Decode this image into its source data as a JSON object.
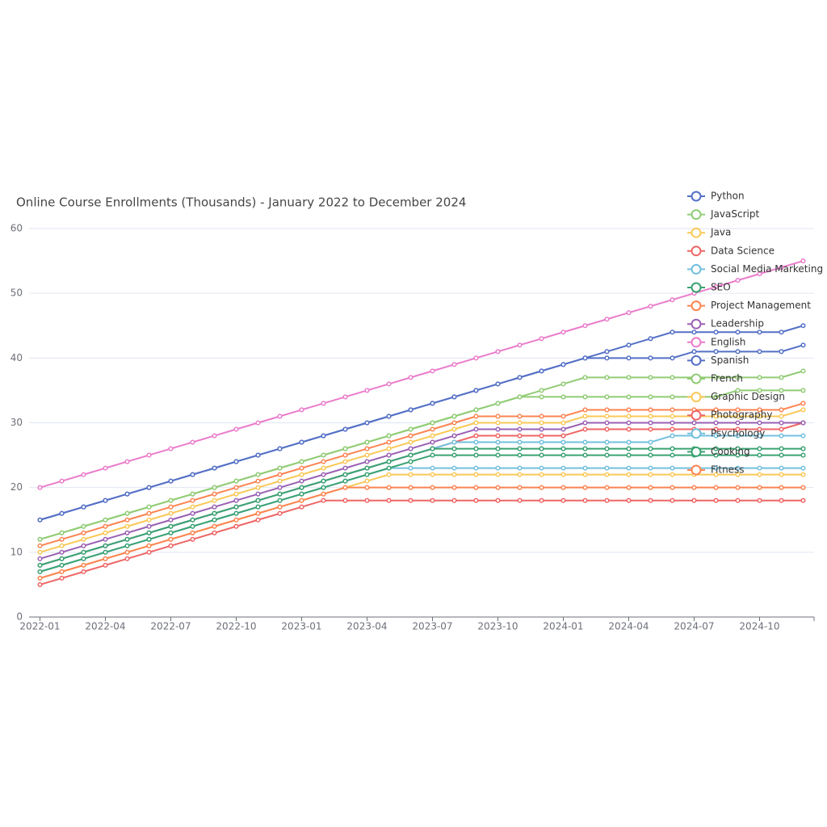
{
  "chart_data": {
    "type": "line",
    "title": "Online Course Enrollments (Thousands) - January 2022 to December 2024",
    "categories": [
      "2022-01",
      null,
      null,
      "2022-04",
      null,
      null,
      "2022-07",
      null,
      null,
      "2022-10",
      null,
      null,
      "2023-01",
      null,
      null,
      "2023-04",
      null,
      null,
      "2023-07",
      null,
      null,
      "2023-10",
      null,
      null,
      "2024-01",
      null,
      null,
      "2024-04",
      null,
      null,
      "2024-07",
      null,
      null,
      "2024-10",
      null,
      null
    ],
    "ylim": [
      0,
      60
    ],
    "yticks": [
      0,
      10,
      20,
      30,
      40,
      50,
      60
    ],
    "grid": true,
    "legend": "top-right",
    "series": [
      {
        "name": "Python",
        "color": "#5470c6",
        "values": [
          15,
          16,
          17,
          18,
          19,
          20,
          21,
          22,
          23,
          24,
          25,
          26,
          27,
          28,
          29,
          30,
          31,
          32,
          33,
          34,
          35,
          36,
          37,
          38,
          39,
          40,
          41,
          42,
          43,
          44,
          44,
          44,
          44,
          44,
          44,
          45
        ]
      },
      {
        "name": "JavaScript",
        "color": "#91cc75",
        "values": [
          12,
          13,
          14,
          15,
          16,
          17,
          18,
          19,
          20,
          21,
          22,
          23,
          24,
          25,
          26,
          27,
          28,
          29,
          30,
          31,
          32,
          33,
          34,
          35,
          36,
          37,
          37,
          37,
          37,
          37,
          37,
          37,
          37,
          37,
          37,
          38
        ]
      },
      {
        "name": "Java",
        "color": "#fac858",
        "values": [
          10,
          11,
          12,
          13,
          14,
          15,
          16,
          17,
          18,
          19,
          20,
          21,
          22,
          23,
          24,
          25,
          26,
          27,
          28,
          29,
          30,
          30,
          30,
          30,
          30,
          31,
          31,
          31,
          31,
          31,
          31,
          31,
          31,
          31,
          31,
          32
        ]
      },
      {
        "name": "Data Science",
        "color": "#ee6666",
        "values": [
          8,
          9,
          10,
          11,
          12,
          13,
          14,
          15,
          16,
          17,
          18,
          19,
          20,
          21,
          22,
          23,
          24,
          25,
          26,
          27,
          28,
          28,
          28,
          28,
          28,
          29,
          29,
          29,
          29,
          29,
          29,
          29,
          29,
          29,
          29,
          30
        ]
      },
      {
        "name": "Social Media Marketing",
        "color": "#73c0de",
        "values": [
          8,
          9,
          10,
          11,
          12,
          13,
          14,
          15,
          16,
          17,
          18,
          19,
          20,
          21,
          22,
          23,
          24,
          25,
          26,
          27,
          27,
          27,
          27,
          27,
          27,
          27,
          27,
          27,
          27,
          28,
          28,
          28,
          28,
          28,
          28,
          28
        ]
      },
      {
        "name": "SEO",
        "color": "#3ba272",
        "values": [
          8,
          9,
          10,
          11,
          12,
          13,
          14,
          15,
          16,
          17,
          18,
          19,
          20,
          21,
          22,
          23,
          24,
          25,
          26,
          26,
          26,
          26,
          26,
          26,
          26,
          26,
          26,
          26,
          26,
          26,
          26,
          26,
          26,
          26,
          26,
          26
        ]
      },
      {
        "name": "Project Management",
        "color": "#fc8452",
        "values": [
          11,
          12,
          13,
          14,
          15,
          16,
          17,
          18,
          19,
          20,
          21,
          22,
          23,
          24,
          25,
          26,
          27,
          28,
          29,
          30,
          31,
          31,
          31,
          31,
          31,
          32,
          32,
          32,
          32,
          32,
          32,
          32,
          32,
          32,
          32,
          33
        ]
      },
      {
        "name": "Leadership",
        "color": "#9a60b4",
        "values": [
          9,
          10,
          11,
          12,
          13,
          14,
          15,
          16,
          17,
          18,
          19,
          20,
          21,
          22,
          23,
          24,
          25,
          26,
          27,
          28,
          29,
          29,
          29,
          29,
          29,
          30,
          30,
          30,
          30,
          30,
          30,
          30,
          30,
          30,
          30,
          30
        ]
      },
      {
        "name": "English",
        "color": "#ea7ccc",
        "values": [
          20,
          21,
          22,
          23,
          24,
          25,
          26,
          27,
          28,
          29,
          30,
          31,
          32,
          33,
          34,
          35,
          36,
          37,
          38,
          39,
          40,
          41,
          42,
          43,
          44,
          45,
          46,
          47,
          48,
          49,
          50,
          51,
          52,
          53,
          54,
          55
        ]
      },
      {
        "name": "Spanish",
        "color": "#5470c6",
        "values": [
          15,
          16,
          17,
          18,
          19,
          20,
          21,
          22,
          23,
          24,
          25,
          26,
          27,
          28,
          29,
          30,
          31,
          32,
          33,
          34,
          35,
          36,
          37,
          38,
          39,
          40,
          40,
          40,
          40,
          40,
          41,
          41,
          41,
          41,
          41,
          42
        ]
      },
      {
        "name": "French",
        "color": "#91cc75",
        "values": [
          12,
          13,
          14,
          15,
          16,
          17,
          18,
          19,
          20,
          21,
          22,
          23,
          24,
          25,
          26,
          27,
          28,
          29,
          30,
          31,
          32,
          33,
          34,
          34,
          34,
          34,
          34,
          34,
          34,
          34,
          34,
          34,
          35,
          35,
          35,
          35
        ]
      },
      {
        "name": "Graphic Design",
        "color": "#fac858",
        "values": [
          6,
          7,
          8,
          9,
          10,
          11,
          12,
          13,
          14,
          15,
          16,
          17,
          18,
          19,
          20,
          21,
          22,
          22,
          22,
          22,
          22,
          22,
          22,
          22,
          22,
          22,
          22,
          22,
          22,
          22,
          22,
          22,
          22,
          22,
          22,
          22
        ]
      },
      {
        "name": "Photography",
        "color": "#ee6666",
        "values": [
          5,
          6,
          7,
          8,
          9,
          10,
          11,
          12,
          13,
          14,
          15,
          16,
          17,
          18,
          18,
          18,
          18,
          18,
          18,
          18,
          18,
          18,
          18,
          18,
          18,
          18,
          18,
          18,
          18,
          18,
          18,
          18,
          18,
          18,
          18,
          18
        ]
      },
      {
        "name": "Psychology",
        "color": "#73c0de",
        "values": [
          7,
          8,
          9,
          10,
          11,
          12,
          13,
          14,
          15,
          16,
          17,
          18,
          19,
          20,
          21,
          22,
          23,
          23,
          23,
          23,
          23,
          23,
          23,
          23,
          23,
          23,
          23,
          23,
          23,
          23,
          23,
          23,
          23,
          23,
          23,
          23
        ]
      },
      {
        "name": "Cooking",
        "color": "#3ba272",
        "values": [
          7,
          8,
          9,
          10,
          11,
          12,
          13,
          14,
          15,
          16,
          17,
          18,
          19,
          20,
          21,
          22,
          23,
          24,
          25,
          25,
          25,
          25,
          25,
          25,
          25,
          25,
          25,
          25,
          25,
          25,
          25,
          25,
          25,
          25,
          25,
          25
        ]
      },
      {
        "name": "Fitness",
        "color": "#fc8452",
        "values": [
          6,
          7,
          8,
          9,
          10,
          11,
          12,
          13,
          14,
          15,
          16,
          17,
          18,
          19,
          20,
          20,
          20,
          20,
          20,
          20,
          20,
          20,
          20,
          20,
          20,
          20,
          20,
          20,
          20,
          20,
          20,
          20,
          20,
          20,
          20,
          20
        ]
      }
    ]
  }
}
